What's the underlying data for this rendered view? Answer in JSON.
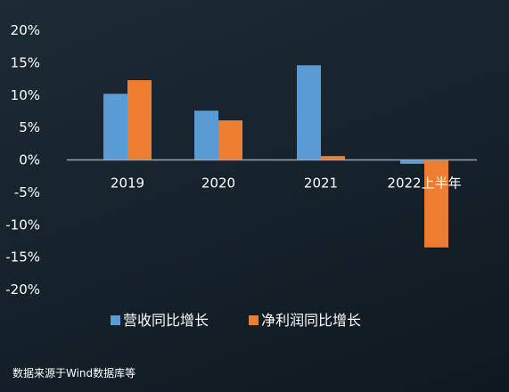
{
  "chart_data": {
    "type": "bar",
    "categories": [
      "2019",
      "2020",
      "2021",
      "2022上半年"
    ],
    "series": [
      {
        "name": "营收同比增长",
        "color": "#5b9bd5",
        "values": [
          10.2,
          7.6,
          14.6,
          -0.6
        ]
      },
      {
        "name": "净利润同比增长",
        "color": "#ed7d31",
        "values": [
          12.3,
          6.1,
          0.6,
          -13.5
        ]
      }
    ],
    "y_ticks": [
      "20%",
      "15%",
      "10%",
      "5%",
      "0%",
      "-5%",
      "-10%",
      "-15%",
      "-20%"
    ],
    "ylim": [
      -20,
      20
    ],
    "legend_position": "bottom",
    "grid": false,
    "title": "",
    "xlabel": "",
    "ylabel": ""
  },
  "footer": {
    "source": "数据来源于Wind数据库等"
  },
  "colors": {
    "axis": "#9aa3aa",
    "background": "#17232d"
  }
}
